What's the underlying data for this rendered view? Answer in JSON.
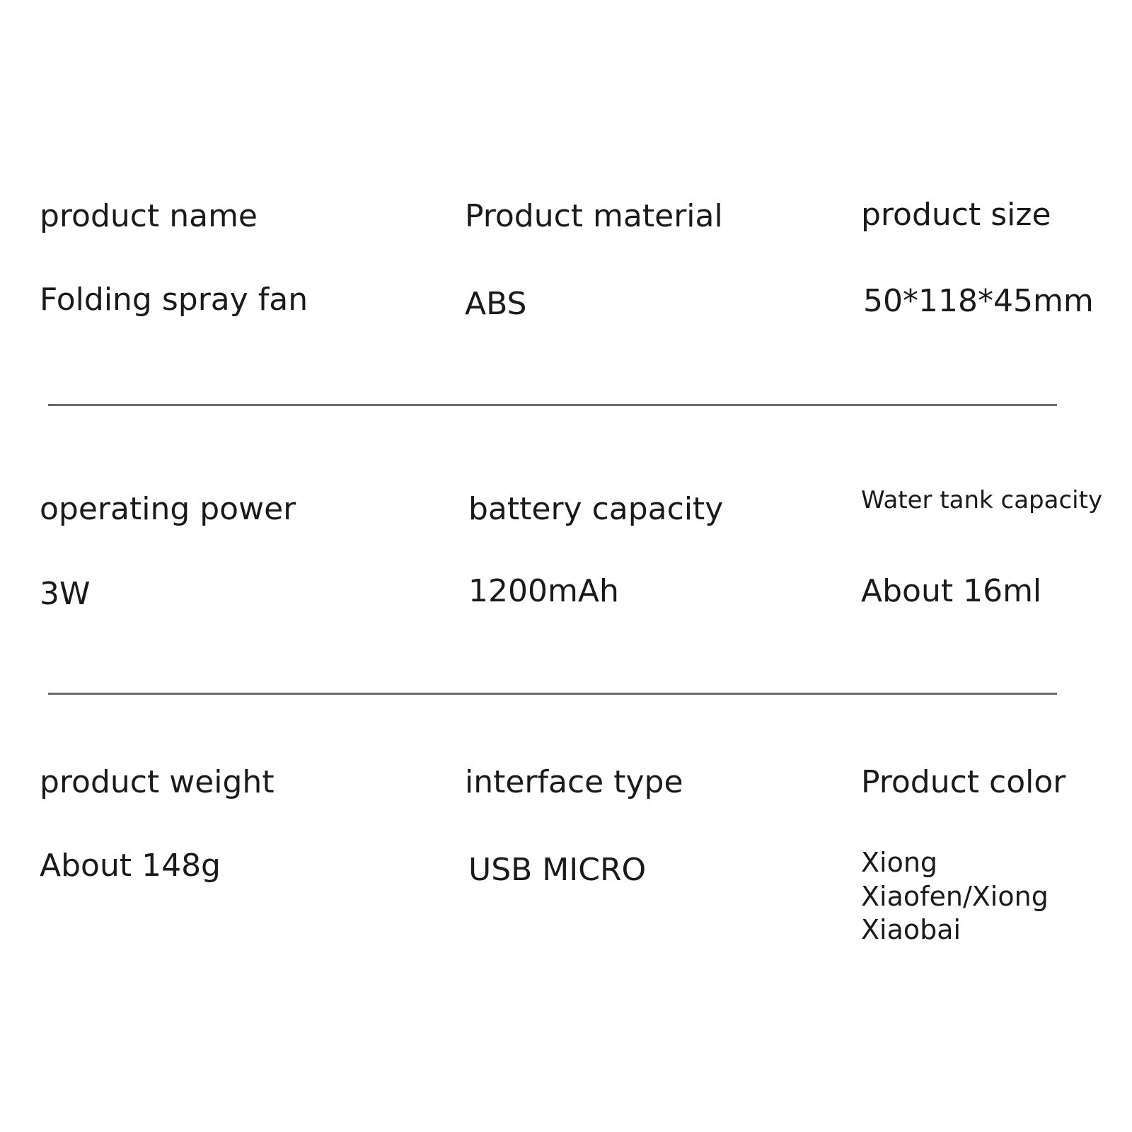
{
  "specs": [
    {
      "label": "product name",
      "value": "Folding spray fan"
    },
    {
      "label": "Product material",
      "value": "ABS"
    },
    {
      "label": "product size",
      "value": "50*118*45mm"
    },
    {
      "label": "operating power",
      "value": "3W"
    },
    {
      "label": "battery capacity",
      "value": "1200mAh"
    },
    {
      "label": "Water tank capacity",
      "value": "About 16ml"
    },
    {
      "label": "product weight",
      "value": "About 148g"
    },
    {
      "label": "interface type",
      "value": "USB MICRO"
    },
    {
      "label": "Product color",
      "value": "Xiong Xiaofen/Xiong Xiaobai"
    }
  ],
  "colors": {
    "text": "#1a1a1a",
    "divider": "#6a6a6a",
    "background": "#ffffff"
  }
}
